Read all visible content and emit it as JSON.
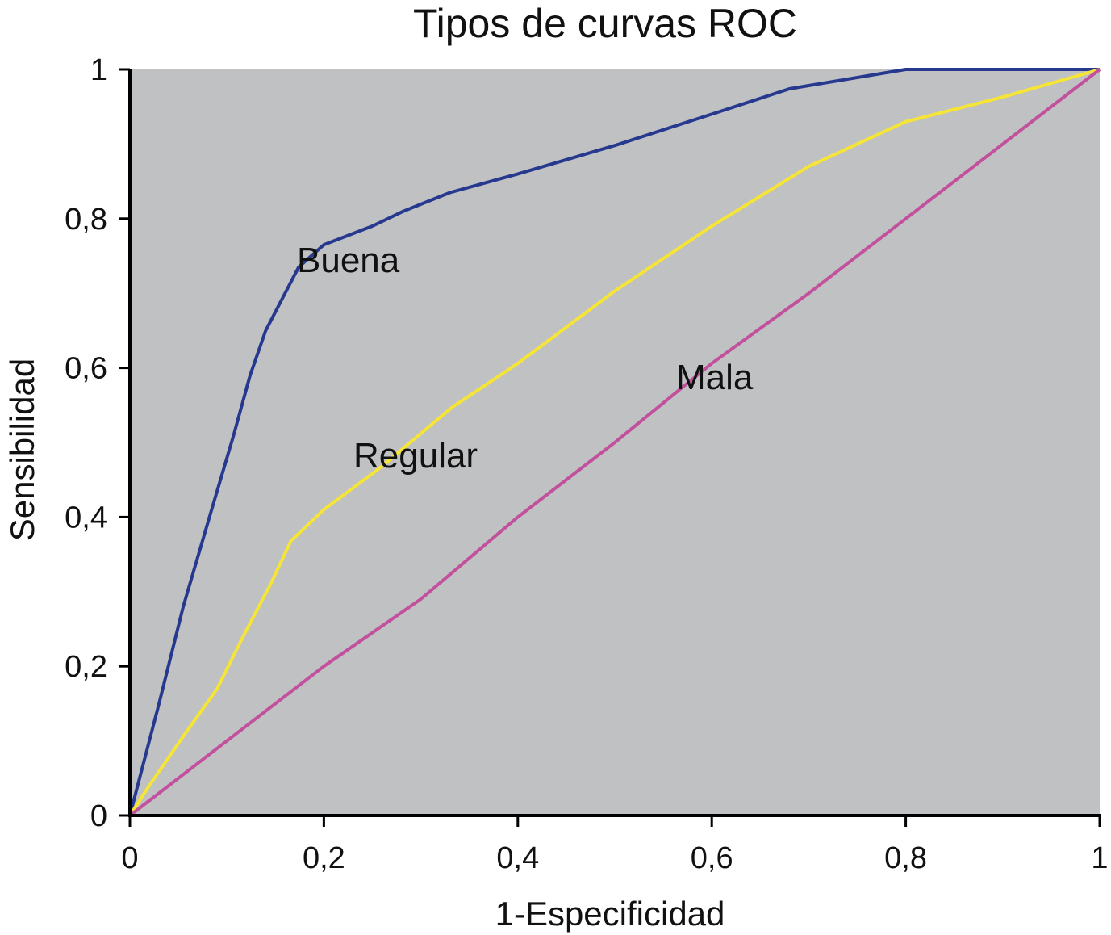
{
  "chart_data": {
    "type": "line",
    "title": "Tipos de curvas ROC",
    "xlabel": "1-Especificidad",
    "ylabel": "Sensibilidad",
    "xlim": [
      0,
      1
    ],
    "ylim": [
      0,
      1
    ],
    "grid": false,
    "background": "#c0c1c3",
    "x_ticks": [
      "0",
      "0,2",
      "0,4",
      "0,6",
      "0,8",
      "1"
    ],
    "y_ticks": [
      "0",
      "0,2",
      "0,4",
      "0,6",
      "0,8",
      "1"
    ],
    "series": [
      {
        "name": "Buena",
        "color": "#27398f",
        "x": [
          0,
          0.01,
          0.03,
          0.055,
          0.082,
          0.107,
          0.124,
          0.14,
          0.174,
          0.2,
          0.25,
          0.282,
          0.33,
          0.4,
          0.5,
          0.6,
          0.68,
          0.8,
          1.0
        ],
        "y": [
          0,
          0.05,
          0.15,
          0.28,
          0.4,
          0.51,
          0.59,
          0.65,
          0.735,
          0.765,
          0.79,
          0.81,
          0.835,
          0.86,
          0.898,
          0.94,
          0.974,
          1.0,
          1.0
        ]
      },
      {
        "name": "Regular",
        "color": "#f6e535",
        "x": [
          0,
          0.02,
          0.056,
          0.09,
          0.116,
          0.145,
          0.166,
          0.2,
          0.257,
          0.332,
          0.4,
          0.5,
          0.6,
          0.7,
          0.8,
          0.9,
          1.0
        ],
        "y": [
          0,
          0.04,
          0.108,
          0.17,
          0.238,
          0.31,
          0.368,
          0.41,
          0.465,
          0.547,
          0.606,
          0.703,
          0.79,
          0.87,
          0.93,
          0.963,
          1.0
        ]
      },
      {
        "name": "Mala",
        "color": "#c2509c",
        "x": [
          0,
          0.05,
          0.1,
          0.2,
          0.3,
          0.4,
          0.5,
          0.6,
          0.7,
          0.8,
          0.9,
          1.0
        ],
        "y": [
          0,
          0.05,
          0.1,
          0.2,
          0.29,
          0.4,
          0.5,
          0.606,
          0.7,
          0.8,
          0.9,
          1.0
        ]
      }
    ]
  }
}
